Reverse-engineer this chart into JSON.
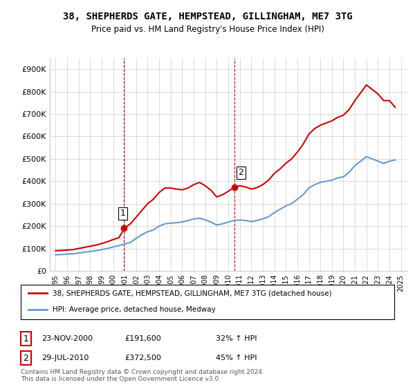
{
  "title": "38, SHEPHERDS GATE, HEMPSTEAD, GILLINGHAM, ME7 3TG",
  "subtitle": "Price paid vs. HM Land Registry's House Price Index (HPI)",
  "ylabel_ticks": [
    "£0",
    "£100K",
    "£200K",
    "£300K",
    "£400K",
    "£500K",
    "£600K",
    "£700K",
    "£800K",
    "£900K"
  ],
  "ytick_values": [
    0,
    100000,
    200000,
    300000,
    400000,
    500000,
    600000,
    700000,
    800000,
    900000
  ],
  "ylim": [
    0,
    950000
  ],
  "xlabel": "",
  "legend_line1": "38, SHEPHERDS GATE, HEMPSTEAD, GILLINGHAM, ME7 3TG (detached house)",
  "legend_line2": "HPI: Average price, detached house, Medway",
  "annotation1_label": "1",
  "annotation1_date": "23-NOV-2000",
  "annotation1_price": "£191,600",
  "annotation1_hpi": "32% ↑ HPI",
  "annotation2_label": "2",
  "annotation2_date": "29-JUL-2010",
  "annotation2_price": "£372,500",
  "annotation2_hpi": "45% ↑ HPI",
  "footnote": "Contains HM Land Registry data © Crown copyright and database right 2024.\nThis data is licensed under the Open Government Licence v3.0.",
  "red_color": "#cc0000",
  "blue_color": "#6699cc",
  "vline_color": "#cc0000",
  "grid_color": "#cccccc",
  "background_color": "#ffffff",
  "sale1_x": 2000.9,
  "sale1_y": 191600,
  "sale2_x": 2010.57,
  "sale2_y": 372500,
  "hpi_years": [
    1995,
    1995.5,
    1996,
    1996.5,
    1997,
    1997.5,
    1998,
    1998.5,
    1999,
    1999.5,
    2000,
    2000.5,
    2001,
    2001.5,
    2002,
    2002.5,
    2003,
    2003.5,
    2004,
    2004.5,
    2005,
    2005.5,
    2006,
    2006.5,
    2007,
    2007.5,
    2008,
    2008.5,
    2009,
    2009.5,
    2010,
    2010.5,
    2011,
    2011.5,
    2012,
    2012.5,
    2013,
    2013.5,
    2014,
    2014.5,
    2015,
    2015.5,
    2016,
    2016.5,
    2017,
    2017.5,
    2018,
    2018.5,
    2019,
    2019.5,
    2020,
    2020.5,
    2021,
    2021.5,
    2022,
    2022.5,
    2023,
    2023.5,
    2024,
    2024.5
  ],
  "hpi_values": [
    72000,
    73000,
    75000,
    76000,
    80000,
    83000,
    87000,
    90000,
    95000,
    100000,
    107000,
    113000,
    120000,
    127000,
    145000,
    162000,
    175000,
    183000,
    200000,
    210000,
    213000,
    215000,
    218000,
    225000,
    232000,
    235000,
    228000,
    218000,
    205000,
    210000,
    218000,
    225000,
    227000,
    225000,
    220000,
    225000,
    232000,
    242000,
    260000,
    275000,
    290000,
    300000,
    320000,
    340000,
    370000,
    385000,
    395000,
    400000,
    405000,
    415000,
    420000,
    440000,
    470000,
    490000,
    510000,
    500000,
    490000,
    480000,
    490000,
    495000
  ],
  "red_years": [
    1995,
    1995.5,
    1996,
    1996.5,
    1997,
    1997.5,
    1998,
    1998.5,
    1999,
    1999.5,
    2000,
    2000.5,
    2001,
    2001.5,
    2002,
    2002.5,
    2003,
    2003.5,
    2004,
    2004.5,
    2005,
    2005.5,
    2006,
    2006.5,
    2007,
    2007.5,
    2008,
    2008.5,
    2009,
    2009.5,
    2010,
    2010.5,
    2011,
    2011.5,
    2012,
    2012.5,
    2013,
    2013.5,
    2014,
    2014.5,
    2015,
    2015.5,
    2016,
    2016.5,
    2017,
    2017.5,
    2018,
    2018.5,
    2019,
    2019.5,
    2020,
    2020.5,
    2021,
    2021.5,
    2022,
    2022.5,
    2023,
    2023.5,
    2024,
    2024.5
  ],
  "red_values": [
    90000,
    91000,
    93000,
    95000,
    100000,
    105000,
    110000,
    115000,
    122000,
    130000,
    140000,
    148000,
    191600,
    210000,
    240000,
    270000,
    300000,
    320000,
    350000,
    370000,
    370000,
    365000,
    362000,
    370000,
    385000,
    395000,
    380000,
    360000,
    330000,
    340000,
    355000,
    372500,
    380000,
    375000,
    365000,
    372000,
    385000,
    405000,
    435000,
    455000,
    480000,
    500000,
    530000,
    565000,
    610000,
    635000,
    650000,
    660000,
    670000,
    685000,
    695000,
    720000,
    760000,
    795000,
    830000,
    810000,
    790000,
    760000,
    760000,
    730000
  ],
  "xlim_left": 1994.5,
  "xlim_right": 2025.5
}
